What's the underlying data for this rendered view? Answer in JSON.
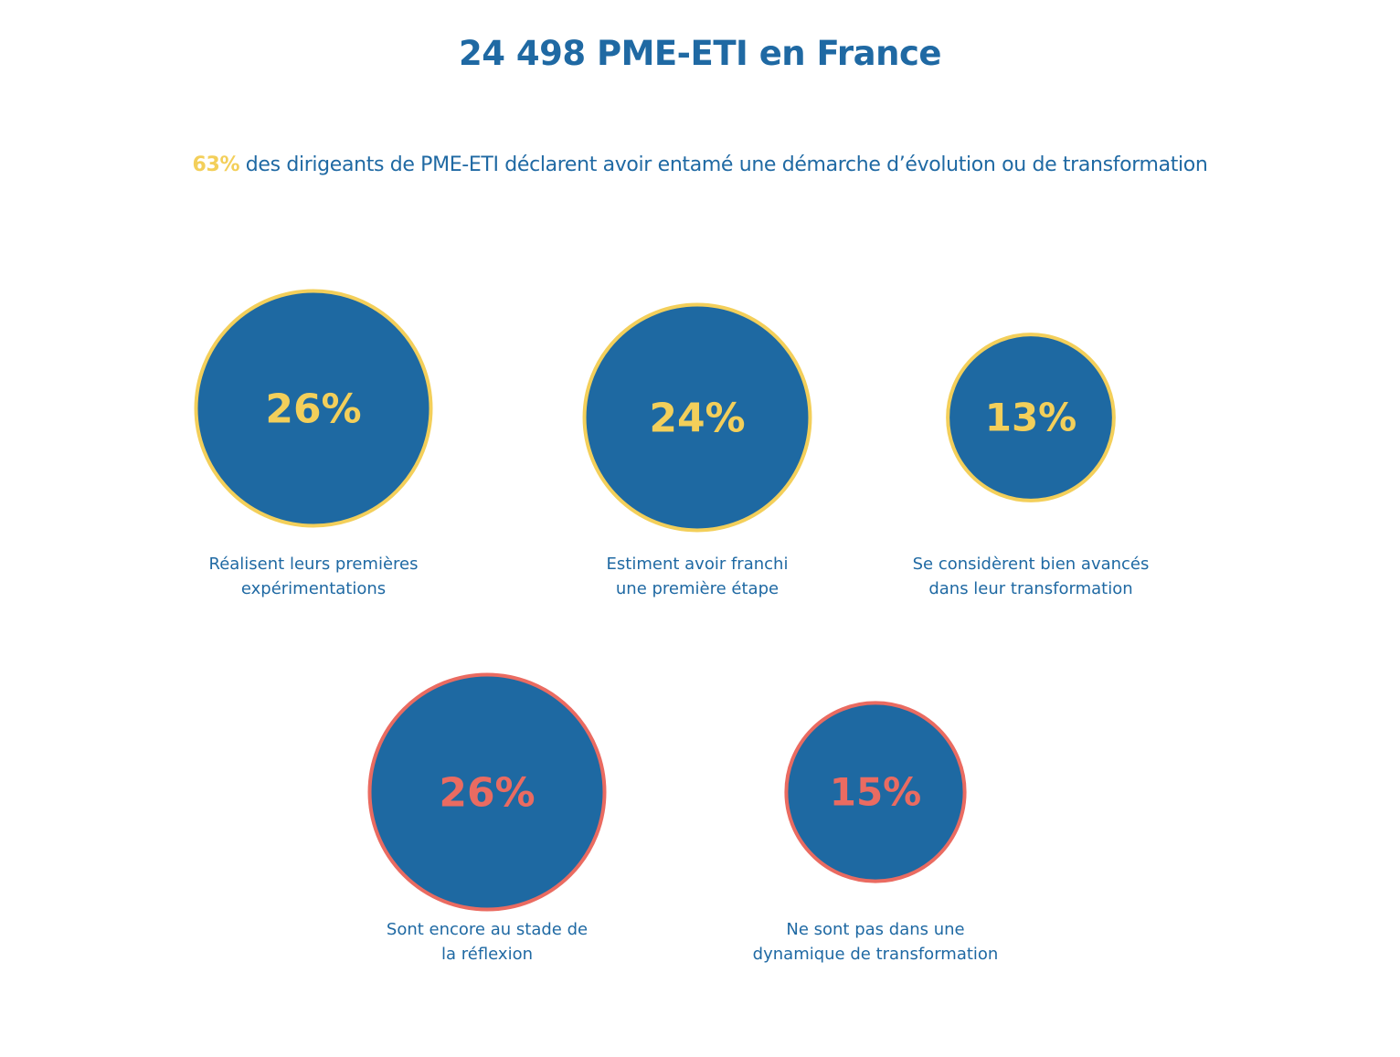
{
  "colors": {
    "text_blue": "#1f69a3",
    "bubble_fill": "#1e69a2",
    "accent_yellow": "#f3cf5a",
    "accent_red": "#ea6b61",
    "background": "#ffffff"
  },
  "header": {
    "title": "24 498 PME-ETI en France",
    "subtitle_highlight": "63%",
    "subtitle_text": " des dirigeants de PME-ETI déclarent avoir entamé une démarche d’évolution ou de transformation"
  },
  "chart_data": {
    "type": "bubble",
    "series": [
      {
        "group": "engaged",
        "ring_color": "#f3cf5a",
        "points": [
          {
            "value": 26,
            "label": "26%",
            "caption": [
              "Réalisent leurs premières",
              "expérimentations"
            ]
          },
          {
            "value": 24,
            "label": "24%",
            "caption": [
              "Estiment avoir franchi",
              "une première étape"
            ]
          },
          {
            "value": 13,
            "label": "13%",
            "caption": [
              "Se considèrent bien avancés",
              "dans leur transformation"
            ]
          }
        ]
      },
      {
        "group": "not_engaged",
        "ring_color": "#ea6b61",
        "points": [
          {
            "value": 26,
            "label": "26%",
            "caption": [
              "Sont encore au stade de",
              "la réflexion"
            ]
          },
          {
            "value": 15,
            "label": "15%",
            "caption": [
              "Ne sont pas dans une",
              "dynamique de transformation"
            ]
          }
        ]
      }
    ]
  }
}
